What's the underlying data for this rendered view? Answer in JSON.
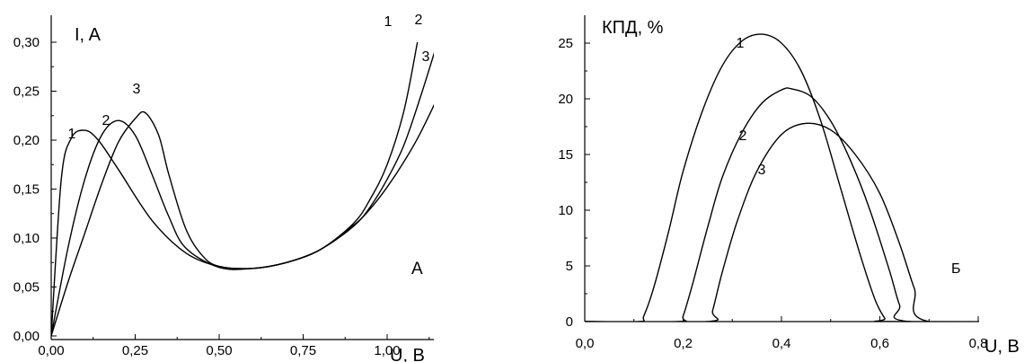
{
  "chart_data": [
    {
      "type": "line",
      "panel_label": "А",
      "ylabel": "I, A",
      "xlabel": "U, B",
      "xlim": [
        0,
        1.2
      ],
      "ylim": [
        0,
        0.3
      ],
      "xticks": [
        0,
        0.25,
        0.5,
        0.75,
        1.0
      ],
      "xtick_labels": [
        "0,00",
        "0,25",
        "0,50",
        "0,75",
        "1,00"
      ],
      "yticks": [
        0,
        0.05,
        0.1,
        0.15,
        0.2,
        0.25,
        0.3
      ],
      "ytick_labels": [
        "0,00",
        "0,05",
        "0,10",
        "0,15",
        "0,20",
        "0,25",
        "0,30"
      ],
      "grid": false,
      "series": [
        {
          "name": "1",
          "x": [
            0,
            0.03,
            0.06,
            0.1,
            0.14,
            0.2,
            0.3,
            0.4,
            0.5,
            0.6,
            0.7,
            0.8,
            0.9,
            0.95,
            1.0,
            1.05,
            1.09
          ],
          "y": [
            0,
            0.16,
            0.202,
            0.21,
            0.2,
            0.17,
            0.118,
            0.085,
            0.071,
            0.069,
            0.075,
            0.088,
            0.115,
            0.14,
            0.175,
            0.23,
            0.3
          ]
        },
        {
          "name": "2",
          "x": [
            0,
            0.05,
            0.1,
            0.15,
            0.2,
            0.25,
            0.3,
            0.35,
            0.4,
            0.5,
            0.6,
            0.7,
            0.8,
            0.9,
            0.95,
            1.0,
            1.05,
            1.1,
            1.15
          ],
          "y": [
            0,
            0.09,
            0.16,
            0.205,
            0.22,
            0.205,
            0.165,
            0.122,
            0.09,
            0.07,
            0.069,
            0.075,
            0.088,
            0.112,
            0.132,
            0.16,
            0.195,
            0.245,
            0.3
          ]
        },
        {
          "name": "3",
          "x": [
            0,
            0.05,
            0.1,
            0.15,
            0.2,
            0.25,
            0.28,
            0.32,
            0.35,
            0.4,
            0.45,
            0.5,
            0.6,
            0.7,
            0.8,
            0.9,
            0.95,
            1.0,
            1.05,
            1.1,
            1.18
          ],
          "y": [
            0,
            0.055,
            0.105,
            0.155,
            0.198,
            0.222,
            0.228,
            0.205,
            0.165,
            0.11,
            0.082,
            0.071,
            0.069,
            0.075,
            0.088,
            0.113,
            0.13,
            0.152,
            0.178,
            0.208,
            0.265
          ]
        }
      ]
    },
    {
      "type": "line",
      "panel_label": "Б",
      "ylabel": "КПД, %",
      "xlabel": "U, B",
      "xlim": [
        0,
        1.0
      ],
      "ylim": [
        0,
        27
      ],
      "xticks": [
        0,
        0.2,
        0.4,
        0.6,
        0.8
      ],
      "xtick_labels": [
        "0,0",
        "0,2",
        "0,4",
        "0,6",
        "0,8"
      ],
      "yticks": [
        0,
        5,
        10,
        15,
        20,
        25
      ],
      "ytick_labels": [
        "0",
        "5",
        "10",
        "15",
        "20",
        "25"
      ],
      "grid": false,
      "series": [
        {
          "name": "1",
          "x": [
            0,
            0.11,
            0.12,
            0.14,
            0.17,
            0.2,
            0.24,
            0.28,
            0.32,
            0.36,
            0.4,
            0.44,
            0.48,
            0.52,
            0.56,
            0.59,
            0.61,
            0.62,
            1.0
          ],
          "y": [
            0,
            0,
            0.5,
            3,
            8,
            13.5,
            19,
            23,
            25.2,
            25.8,
            25,
            22.5,
            18,
            12,
            6,
            2,
            0.3,
            0,
            0
          ]
        },
        {
          "name": "2",
          "x": [
            0,
            0.19,
            0.2,
            0.22,
            0.25,
            0.28,
            0.32,
            0.36,
            0.4,
            0.42,
            0.46,
            0.5,
            0.54,
            0.58,
            0.62,
            0.64,
            0.66,
            1.0
          ],
          "y": [
            0,
            0,
            0.5,
            3.5,
            8.5,
            13,
            17,
            19.6,
            20.8,
            20.9,
            20.2,
            18,
            14.5,
            10,
            4.5,
            1.5,
            0,
            0
          ]
        },
        {
          "name": "3",
          "x": [
            0,
            0.25,
            0.26,
            0.28,
            0.31,
            0.35,
            0.4,
            0.45,
            0.5,
            0.55,
            0.6,
            0.64,
            0.67,
            0.7,
            1.0
          ],
          "y": [
            0,
            0,
            1,
            4.5,
            9,
            13.5,
            16.8,
            17.8,
            17.2,
            15,
            11.5,
            7,
            3,
            0,
            0
          ]
        }
      ]
    }
  ]
}
